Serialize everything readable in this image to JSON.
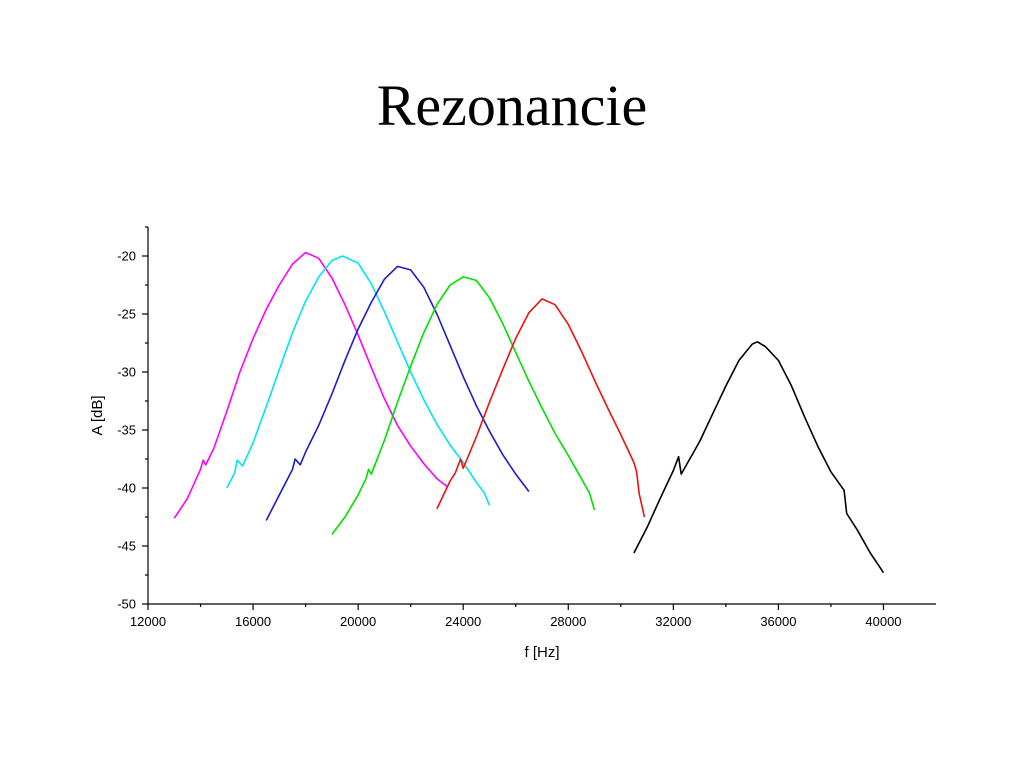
{
  "slide": {
    "title": "Rezonancie"
  },
  "chart_data": {
    "type": "line",
    "title": "",
    "xlabel": "f [Hz]",
    "ylabel": "A [dB]",
    "xlim": [
      12000,
      42000
    ],
    "ylim": [
      -50,
      -17.5
    ],
    "x_ticks": [
      12000,
      16000,
      20000,
      24000,
      28000,
      32000,
      36000,
      40000
    ],
    "y_ticks": [
      -20,
      -25,
      -30,
      -35,
      -40,
      -45,
      -50
    ],
    "grid": false,
    "legend": "none",
    "series": [
      {
        "color": "#ff00ff",
        "points": [
          [
            13000,
            -42.6
          ],
          [
            13500,
            -40.9
          ],
          [
            14000,
            -38.4
          ],
          [
            14100,
            -37.6
          ],
          [
            14200,
            -38.0
          ],
          [
            14500,
            -36.6
          ],
          [
            15000,
            -33.4
          ],
          [
            15500,
            -30.0
          ],
          [
            16000,
            -27.1
          ],
          [
            16500,
            -24.6
          ],
          [
            17000,
            -22.5
          ],
          [
            17500,
            -20.7
          ],
          [
            18000,
            -19.7
          ],
          [
            18500,
            -20.2
          ],
          [
            19000,
            -21.9
          ],
          [
            19500,
            -24.2
          ],
          [
            20000,
            -26.8
          ],
          [
            20500,
            -29.6
          ],
          [
            21000,
            -32.3
          ],
          [
            21500,
            -34.6
          ],
          [
            22000,
            -36.4
          ],
          [
            22500,
            -37.9
          ],
          [
            23000,
            -39.2
          ],
          [
            23400,
            -39.9
          ]
        ]
      },
      {
        "color": "#00e5ee",
        "points": [
          [
            15000,
            -40.0
          ],
          [
            15300,
            -38.7
          ],
          [
            15400,
            -37.6
          ],
          [
            15600,
            -38.1
          ],
          [
            16000,
            -36.1
          ],
          [
            16500,
            -33.0
          ],
          [
            17000,
            -29.8
          ],
          [
            17500,
            -26.6
          ],
          [
            18000,
            -23.9
          ],
          [
            18500,
            -21.8
          ],
          [
            19000,
            -20.4
          ],
          [
            19400,
            -20.0
          ],
          [
            20000,
            -20.6
          ],
          [
            20500,
            -22.4
          ],
          [
            21000,
            -24.8
          ],
          [
            21500,
            -27.4
          ],
          [
            22000,
            -30.0
          ],
          [
            22500,
            -32.4
          ],
          [
            23000,
            -34.5
          ],
          [
            23500,
            -36.3
          ],
          [
            24000,
            -37.8
          ],
          [
            24500,
            -39.5
          ],
          [
            24800,
            -40.4
          ],
          [
            25000,
            -41.5
          ]
        ]
      },
      {
        "color": "#1c1ccc",
        "points": [
          [
            16500,
            -42.8
          ],
          [
            17000,
            -40.6
          ],
          [
            17500,
            -38.4
          ],
          [
            17600,
            -37.5
          ],
          [
            17800,
            -38.0
          ],
          [
            18000,
            -36.9
          ],
          [
            18500,
            -34.6
          ],
          [
            19000,
            -31.9
          ],
          [
            19500,
            -29.0
          ],
          [
            20000,
            -26.3
          ],
          [
            20500,
            -24.0
          ],
          [
            21000,
            -22.0
          ],
          [
            21500,
            -20.9
          ],
          [
            22000,
            -21.2
          ],
          [
            22500,
            -22.7
          ],
          [
            23000,
            -25.0
          ],
          [
            23500,
            -27.7
          ],
          [
            24000,
            -30.4
          ],
          [
            24500,
            -32.9
          ],
          [
            25000,
            -35.1
          ],
          [
            25500,
            -37.1
          ],
          [
            26000,
            -38.8
          ],
          [
            26500,
            -40.3
          ]
        ]
      },
      {
        "color": "#00e000",
        "points": [
          [
            19000,
            -44.0
          ],
          [
            19500,
            -42.5
          ],
          [
            20000,
            -40.6
          ],
          [
            20300,
            -39.2
          ],
          [
            20400,
            -38.4
          ],
          [
            20500,
            -38.8
          ],
          [
            21000,
            -35.9
          ],
          [
            21500,
            -32.6
          ],
          [
            22000,
            -29.5
          ],
          [
            22500,
            -26.6
          ],
          [
            23000,
            -24.2
          ],
          [
            23500,
            -22.5
          ],
          [
            24000,
            -21.8
          ],
          [
            24500,
            -22.1
          ],
          [
            25000,
            -23.6
          ],
          [
            25500,
            -25.8
          ],
          [
            26000,
            -28.3
          ],
          [
            26500,
            -30.8
          ],
          [
            27000,
            -33.1
          ],
          [
            27500,
            -35.3
          ],
          [
            28000,
            -37.2
          ],
          [
            28500,
            -39.2
          ],
          [
            28800,
            -40.4
          ],
          [
            29000,
            -41.9
          ]
        ]
      },
      {
        "color": "#ee1111",
        "points": [
          [
            23000,
            -41.8
          ],
          [
            23500,
            -39.4
          ],
          [
            23700,
            -38.7
          ],
          [
            23900,
            -37.5
          ],
          [
            24000,
            -38.3
          ],
          [
            24500,
            -35.6
          ],
          [
            25000,
            -32.6
          ],
          [
            25500,
            -29.8
          ],
          [
            26000,
            -27.1
          ],
          [
            26500,
            -24.9
          ],
          [
            27000,
            -23.7
          ],
          [
            27500,
            -24.2
          ],
          [
            28000,
            -25.9
          ],
          [
            28500,
            -28.2
          ],
          [
            29000,
            -30.7
          ],
          [
            29500,
            -33.1
          ],
          [
            30000,
            -35.4
          ],
          [
            30500,
            -37.8
          ],
          [
            30600,
            -38.6
          ],
          [
            30700,
            -40.5
          ],
          [
            30900,
            -42.5
          ]
        ]
      },
      {
        "color": "#000000",
        "points": [
          [
            30500,
            -45.6
          ],
          [
            31000,
            -43.4
          ],
          [
            31500,
            -40.9
          ],
          [
            32000,
            -38.5
          ],
          [
            32200,
            -37.3
          ],
          [
            32300,
            -38.8
          ],
          [
            33000,
            -36.0
          ],
          [
            33500,
            -33.6
          ],
          [
            34000,
            -31.2
          ],
          [
            34500,
            -29.0
          ],
          [
            35000,
            -27.6
          ],
          [
            35200,
            -27.4
          ],
          [
            35500,
            -27.8
          ],
          [
            36000,
            -29.0
          ],
          [
            36500,
            -31.2
          ],
          [
            37000,
            -33.9
          ],
          [
            37500,
            -36.4
          ],
          [
            38000,
            -38.6
          ],
          [
            38500,
            -40.2
          ],
          [
            38600,
            -42.2
          ],
          [
            39000,
            -43.6
          ],
          [
            39500,
            -45.6
          ],
          [
            40000,
            -47.3
          ]
        ]
      }
    ]
  }
}
